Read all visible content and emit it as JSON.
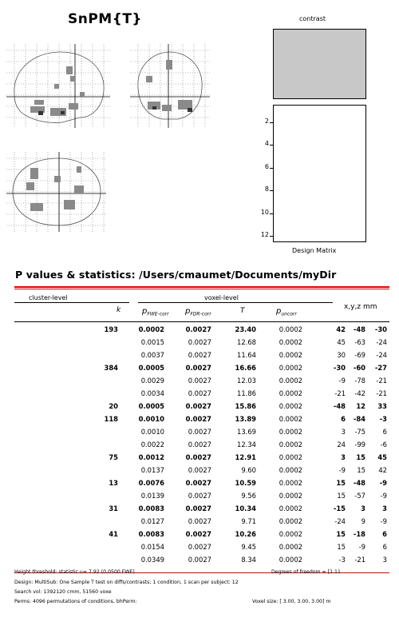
{
  "title": "SnPM{T}",
  "contrast_label": "contrast",
  "design_matrix_label": "Design Matrix",
  "design_matrix_ticks": [
    "2",
    "4",
    "6",
    "8",
    "10",
    "12"
  ],
  "stats_heading": "P values & statistics:   /Users/cmaumet/Documents/myDir",
  "table": {
    "group_cluster": "cluster-level",
    "group_voxel": "voxel-level",
    "col_k": "k",
    "col_pfwe": "p",
    "col_pfwe_sub": "FWE-corr",
    "col_pfdr": "p",
    "col_pfdr_sub": "FDR-corr",
    "col_T": "T",
    "col_punc": "p",
    "col_punc_sub": "uncorr",
    "col_xyz": "x,y,z mm",
    "rows": [
      {
        "k": "193",
        "pfwe": "0.0002",
        "pfdr": "0.0027",
        "T": "23.40",
        "punc": "0.0002",
        "x": "42",
        "y": "-48",
        "z": "-30",
        "bold": true
      },
      {
        "k": "",
        "pfwe": "0.0015",
        "pfdr": "0.0027",
        "T": "12.68",
        "punc": "0.0002",
        "x": "45",
        "y": "-63",
        "z": "-24",
        "bold": false
      },
      {
        "k": "",
        "pfwe": "0.0037",
        "pfdr": "0.0027",
        "T": "11.64",
        "punc": "0.0002",
        "x": "30",
        "y": "-69",
        "z": "-24",
        "bold": false
      },
      {
        "k": "384",
        "pfwe": "0.0005",
        "pfdr": "0.0027",
        "T": "16.66",
        "punc": "0.0002",
        "x": "-30",
        "y": "-60",
        "z": "-27",
        "bold": true
      },
      {
        "k": "",
        "pfwe": "0.0029",
        "pfdr": "0.0027",
        "T": "12.03",
        "punc": "0.0002",
        "x": "-9",
        "y": "-78",
        "z": "-21",
        "bold": false
      },
      {
        "k": "",
        "pfwe": "0.0034",
        "pfdr": "0.0027",
        "T": "11.86",
        "punc": "0.0002",
        "x": "-21",
        "y": "-42",
        "z": "-21",
        "bold": false
      },
      {
        "k": "20",
        "pfwe": "0.0005",
        "pfdr": "0.0027",
        "T": "15.86",
        "punc": "0.0002",
        "x": "-48",
        "y": "12",
        "z": "33",
        "bold": true
      },
      {
        "k": "118",
        "pfwe": "0.0010",
        "pfdr": "0.0027",
        "T": "13.89",
        "punc": "0.0002",
        "x": "6",
        "y": "-84",
        "z": "-3",
        "bold": true
      },
      {
        "k": "",
        "pfwe": "0.0010",
        "pfdr": "0.0027",
        "T": "13.69",
        "punc": "0.0002",
        "x": "3",
        "y": "-75",
        "z": "6",
        "bold": false
      },
      {
        "k": "",
        "pfwe": "0.0022",
        "pfdr": "0.0027",
        "T": "12.34",
        "punc": "0.0002",
        "x": "24",
        "y": "-99",
        "z": "-6",
        "bold": false
      },
      {
        "k": "75",
        "pfwe": "0.0012",
        "pfdr": "0.0027",
        "T": "12.91",
        "punc": "0.0002",
        "x": "3",
        "y": "15",
        "z": "45",
        "bold": true
      },
      {
        "k": "",
        "pfwe": "0.0137",
        "pfdr": "0.0027",
        "T": "9.60",
        "punc": "0.0002",
        "x": "-9",
        "y": "15",
        "z": "42",
        "bold": false
      },
      {
        "k": "13",
        "pfwe": "0.0076",
        "pfdr": "0.0027",
        "T": "10.59",
        "punc": "0.0002",
        "x": "15",
        "y": "-48",
        "z": "-9",
        "bold": true
      },
      {
        "k": "",
        "pfwe": "0.0139",
        "pfdr": "0.0027",
        "T": "9.56",
        "punc": "0.0002",
        "x": "15",
        "y": "-57",
        "z": "-9",
        "bold": false
      },
      {
        "k": "31",
        "pfwe": "0.0083",
        "pfdr": "0.0027",
        "T": "10.34",
        "punc": "0.0002",
        "x": "-15",
        "y": "3",
        "z": "3",
        "bold": true
      },
      {
        "k": "",
        "pfwe": "0.0127",
        "pfdr": "0.0027",
        "T": "9.71",
        "punc": "0.0002",
        "x": "-24",
        "y": "9",
        "z": "-9",
        "bold": false
      },
      {
        "k": "41",
        "pfwe": "0.0083",
        "pfdr": "0.0027",
        "T": "10.26",
        "punc": "0.0002",
        "x": "15",
        "y": "-18",
        "z": "6",
        "bold": true
      },
      {
        "k": "",
        "pfwe": "0.0154",
        "pfdr": "0.0027",
        "T": "9.45",
        "punc": "0.0002",
        "x": "15",
        "y": "-9",
        "z": "6",
        "bold": false
      },
      {
        "k": "",
        "pfwe": "0.0349",
        "pfdr": "0.0027",
        "T": "8.34",
        "punc": "0.0002",
        "x": "-3",
        "y": "-21",
        "z": "3",
        "bold": false
      }
    ]
  },
  "footer": {
    "height_threshold": "Height threshold: statistic u=   7.92 (0.0500 FWE)",
    "dof": "Degrees of freedom = [1 11",
    "design": "Design: MultiSub: One Sample T test on diffs/contrasts; 1 condition, 1 scan per subject: 12",
    "search_vol": "Search vol: 1392120 cmm, 51560 voxe",
    "perms": "Perms: 4096 permutations of conditions, bhPerm:",
    "voxel_size": "Voxel size: [ 3.00,  3.00,  3.00] m"
  }
}
